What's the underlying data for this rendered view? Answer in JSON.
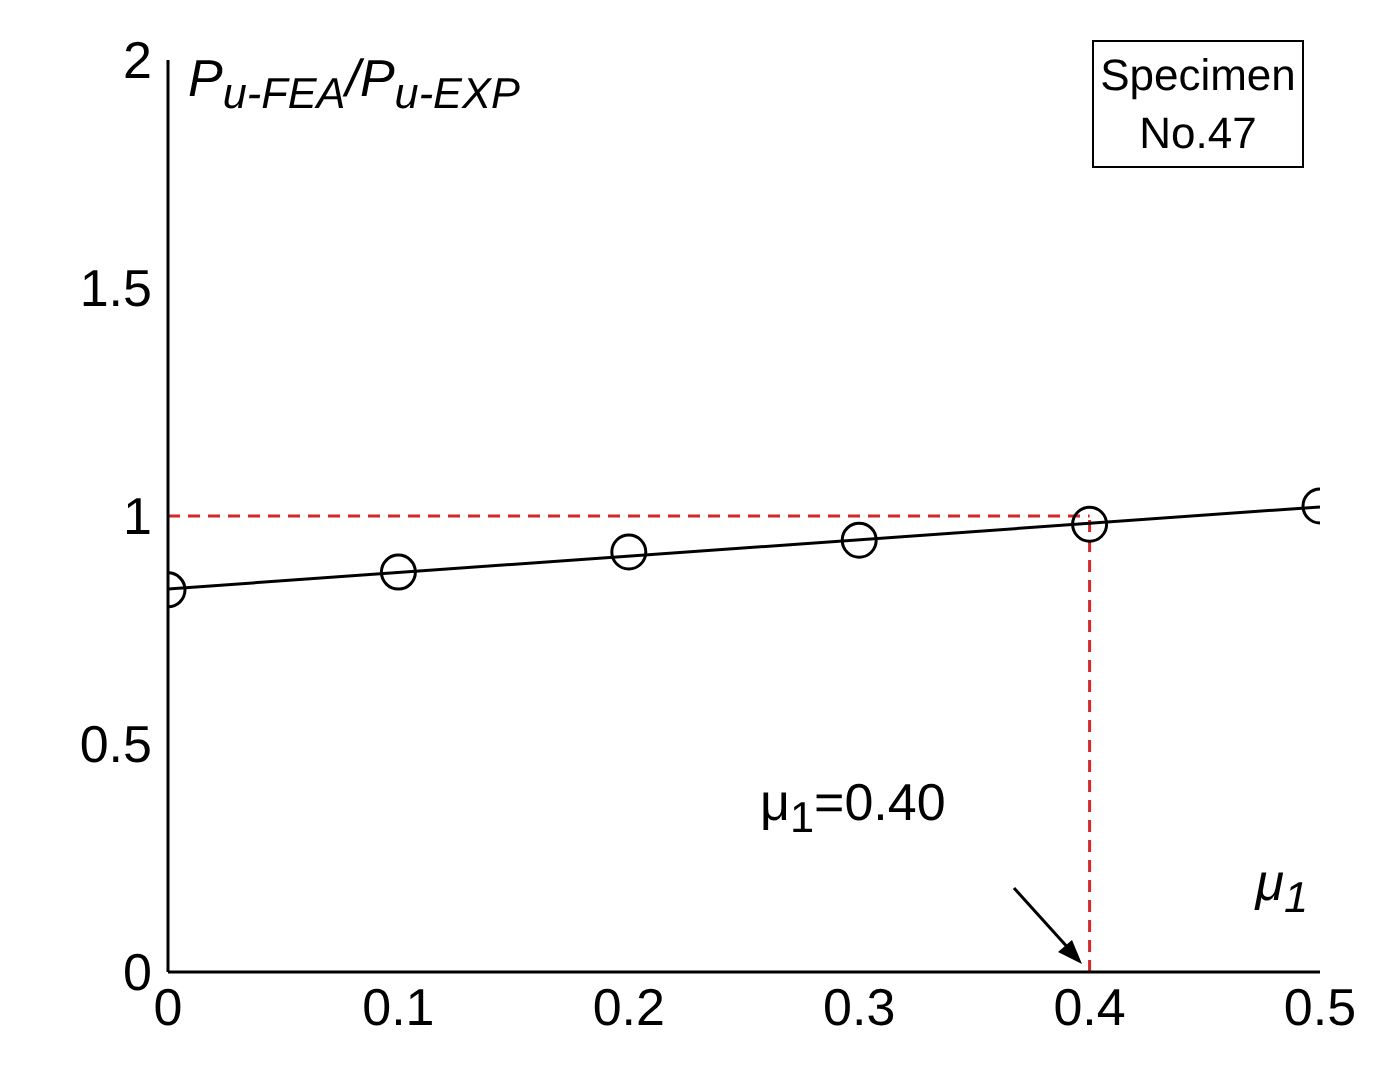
{
  "chart_data": {
    "type": "scatter",
    "ylabel": "P$_{u-FEA}$/P$_{u-EXP}$",
    "xlabel": "μ$_{1}$",
    "x": [
      0,
      0.1,
      0.2,
      0.3,
      0.4,
      0.5
    ],
    "series": [
      {
        "color": "#000000",
        "values": [
          0.838,
          0.877,
          0.921,
          0.947,
          0.982,
          1.022
        ],
        "marker": "circle"
      },
      {
        "type": "line",
        "color": "#000000",
        "x": [
          0,
          0.5
        ],
        "values": [
          0.84,
          1.02
        ],
        "marker": "none",
        "line_style": "solid"
      }
    ],
    "xlim": [
      0,
      0.5
    ],
    "xticks": [
      0,
      0.1,
      0.2,
      0.3,
      0.4,
      0.5
    ],
    "ylim": [
      0,
      2
    ],
    "yticks": [
      0,
      0.5,
      1,
      1.5,
      2
    ],
    "ref_lines": [
      {
        "axis": "y",
        "value": 1,
        "color": "#d62728",
        "line_style": "dashed"
      },
      {
        "axis": "x",
        "value": 0.4,
        "color": "#d62728",
        "line_style": "dashed"
      }
    ],
    "annotations": [
      "μ$_{1}$=0.40",
      "Specimen No.47"
    ]
  }
}
